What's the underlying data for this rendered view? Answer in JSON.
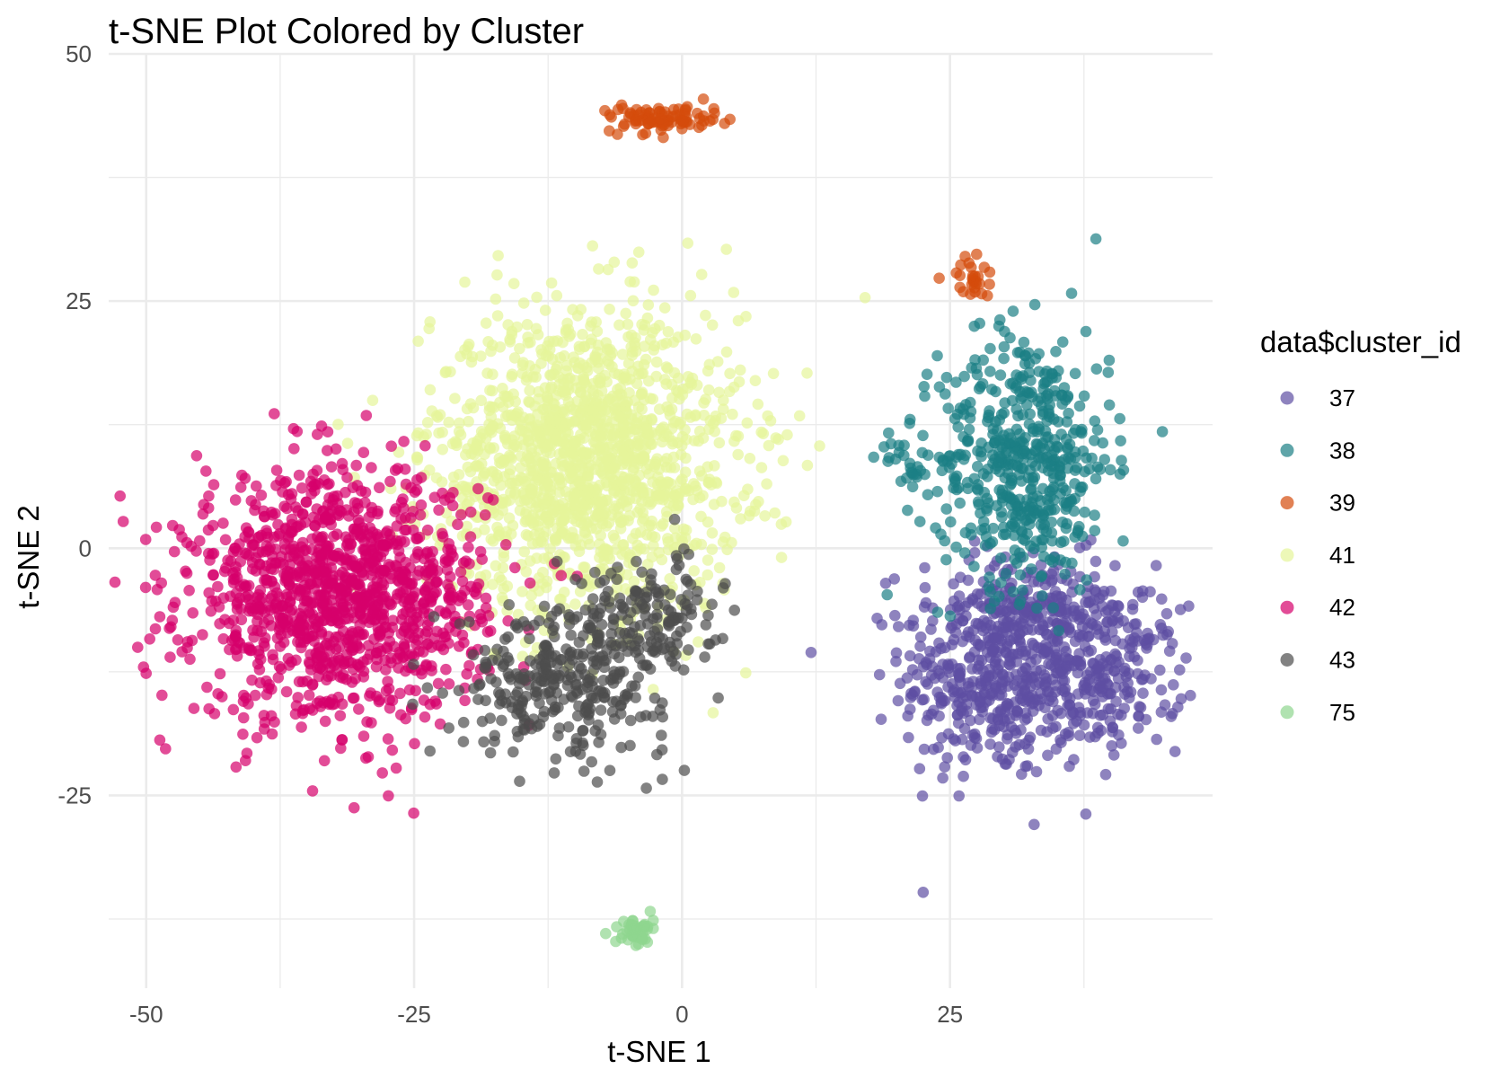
{
  "chart_data": {
    "type": "scatter",
    "title": "t-SNE Plot Colored by Cluster",
    "xlabel": "t-SNE 1",
    "ylabel": "t-SNE 2",
    "xlim": [
      -53.5,
      49.5
    ],
    "ylim": [
      -44.5,
      50
    ],
    "x_ticks": [
      -50,
      -25,
      0,
      25
    ],
    "y_ticks": [
      50,
      25,
      0,
      -25
    ],
    "x_tick_labels": [
      "-50",
      "-25",
      "0",
      "25"
    ],
    "y_tick_labels": [
      "50",
      "25",
      "0",
      "-25"
    ],
    "grid": true,
    "legend": {
      "title": "data$cluster_id",
      "position": "right"
    },
    "point_alpha": 0.7,
    "series": [
      {
        "name": "37",
        "color": "#5e4fa2",
        "clusters": [
          {
            "cx": 29,
            "cy": -13,
            "sx": 4.2,
            "sy": 5.2,
            "n": 420
          },
          {
            "cx": 39.5,
            "cy": -13,
            "sx": 3.6,
            "sy": 3.6,
            "n": 230
          },
          {
            "cx": 33,
            "cy": -6.5,
            "sx": 5.5,
            "sy": 3.0,
            "n": 200
          }
        ]
      },
      {
        "name": "38",
        "color": "#1b7f84",
        "clusters": [
          {
            "cx": 32,
            "cy": 9,
            "sx": 4.0,
            "sy": 6.5,
            "n": 520
          },
          {
            "cx": 21,
            "cy": 8,
            "sx": 1.4,
            "sy": 2.0,
            "n": 24
          }
        ]
      },
      {
        "name": "39",
        "color": "#d44c0b",
        "clusters": [
          {
            "cx": -1.5,
            "cy": 43.5,
            "sx": 2.6,
            "sy": 0.7,
            "n": 90
          },
          {
            "cx": 26.8,
            "cy": 27.3,
            "sx": 0.9,
            "sy": 1.0,
            "n": 28
          }
        ]
      },
      {
        "name": "41",
        "color": "#e6f59a",
        "clusters": [
          {
            "cx": -9,
            "cy": 9,
            "sx": 7.2,
            "sy": 7.5,
            "n": 1500
          }
        ]
      },
      {
        "name": "42",
        "color": "#d6006b",
        "clusters": [
          {
            "cx": -32,
            "cy": -5,
            "sx": 6.8,
            "sy": 6.2,
            "n": 1250
          }
        ]
      },
      {
        "name": "43",
        "color": "#4d4d4d",
        "clusters": [
          {
            "cx": -11,
            "cy": -13,
            "sx": 4.8,
            "sy": 3.8,
            "n": 330
          },
          {
            "cx": -3,
            "cy": -7,
            "sx": 3.2,
            "sy": 3.0,
            "n": 140
          }
        ]
      },
      {
        "name": "75",
        "color": "#8fd68f",
        "clusters": [
          {
            "cx": -4.5,
            "cy": -38.8,
            "sx": 0.9,
            "sy": 0.8,
            "n": 45
          }
        ]
      }
    ]
  }
}
